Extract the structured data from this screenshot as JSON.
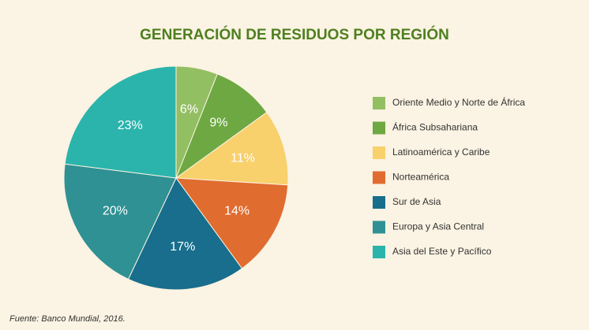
{
  "chart_data": {
    "type": "pie",
    "title": "GENERACIÓN DE RESIDUOS POR REGIÓN",
    "categories": [
      "Oriente Medio y Norte de África",
      "África Subsahariana",
      "Latinoamérica y Caribe",
      "Norteamérica",
      "Sur de Asia",
      "Europa y Asia Central",
      "Asia del Este y Pacífico"
    ],
    "values": [
      6,
      9,
      11,
      14,
      17,
      20,
      23
    ],
    "value_labels": [
      "6%",
      "9%",
      "11%",
      "14%",
      "17%",
      "20%",
      "23%"
    ],
    "colors": [
      "#93bf63",
      "#6da842",
      "#f8d06c",
      "#e06c2f",
      "#186e8c",
      "#2f9193",
      "#2bb4ac"
    ],
    "legend": "right",
    "source": "Fuente: Banco Mundial, 2016."
  }
}
